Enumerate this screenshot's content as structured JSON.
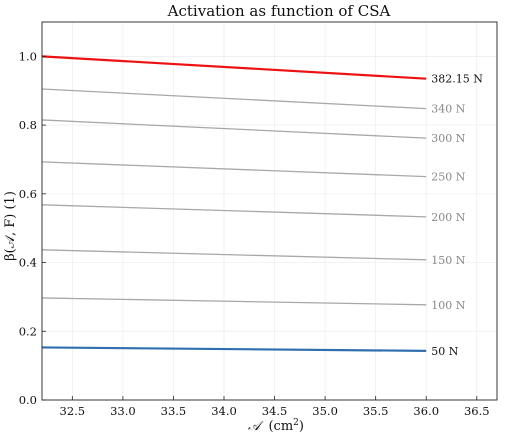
{
  "chart_data": {
    "type": "line",
    "title": "Activation as function of CSA",
    "xlabel_main": "𝒜",
    "xlabel_unit_base": "(cm",
    "xlabel_unit_exp": "2",
    "xlabel_unit_close": ")",
    "ylabel": "β(𝒜, F) (1)",
    "xlim": [
      32.2,
      36.7
    ],
    "ylim": [
      0.0,
      1.1
    ],
    "x_ticks": [
      32.5,
      33.0,
      33.5,
      34.0,
      34.5,
      35.0,
      35.5,
      36.0,
      36.5
    ],
    "x_tick_labels": [
      "32.5",
      "33.0",
      "33.5",
      "34.0",
      "34.5",
      "35.0",
      "35.5",
      "36.0",
      "36.5"
    ],
    "y_ticks": [
      0.0,
      0.2,
      0.4,
      0.6,
      0.8,
      1.0
    ],
    "y_tick_labels": [
      "0.0",
      "0.2",
      "0.4",
      "0.6",
      "0.8",
      "1.0"
    ],
    "grid": true,
    "legend": "none",
    "series": [
      {
        "name": "382.15 N",
        "x": [
          32.2,
          36.0
        ],
        "y": [
          1.0,
          0.935
        ],
        "color": "#ee1111",
        "width": 2.2,
        "label_color": "#111111"
      },
      {
        "name": "340 N",
        "x": [
          32.2,
          36.0
        ],
        "y": [
          0.905,
          0.848
        ],
        "color": "#a8a8a8",
        "width": 1.3,
        "label_color": "#888888"
      },
      {
        "name": "300 N",
        "x": [
          32.2,
          36.0
        ],
        "y": [
          0.815,
          0.762
        ],
        "color": "#a8a8a8",
        "width": 1.3,
        "label_color": "#888888"
      },
      {
        "name": "250 N",
        "x": [
          32.2,
          36.0
        ],
        "y": [
          0.693,
          0.65
        ],
        "color": "#a8a8a8",
        "width": 1.3,
        "label_color": "#888888"
      },
      {
        "name": "200 N",
        "x": [
          32.2,
          36.0
        ],
        "y": [
          0.568,
          0.533
        ],
        "color": "#a8a8a8",
        "width": 1.3,
        "label_color": "#888888"
      },
      {
        "name": "150 N",
        "x": [
          32.2,
          36.0
        ],
        "y": [
          0.437,
          0.408
        ],
        "color": "#a8a8a8",
        "width": 1.3,
        "label_color": "#888888"
      },
      {
        "name": "100 N",
        "x": [
          32.2,
          36.0
        ],
        "y": [
          0.297,
          0.277
        ],
        "color": "#a8a8a8",
        "width": 1.3,
        "label_color": "#888888"
      },
      {
        "name": "50 N",
        "x": [
          32.2,
          36.0
        ],
        "y": [
          0.153,
          0.143
        ],
        "color": "#2f6fb0",
        "width": 2.2,
        "label_color": "#111111"
      }
    ]
  }
}
